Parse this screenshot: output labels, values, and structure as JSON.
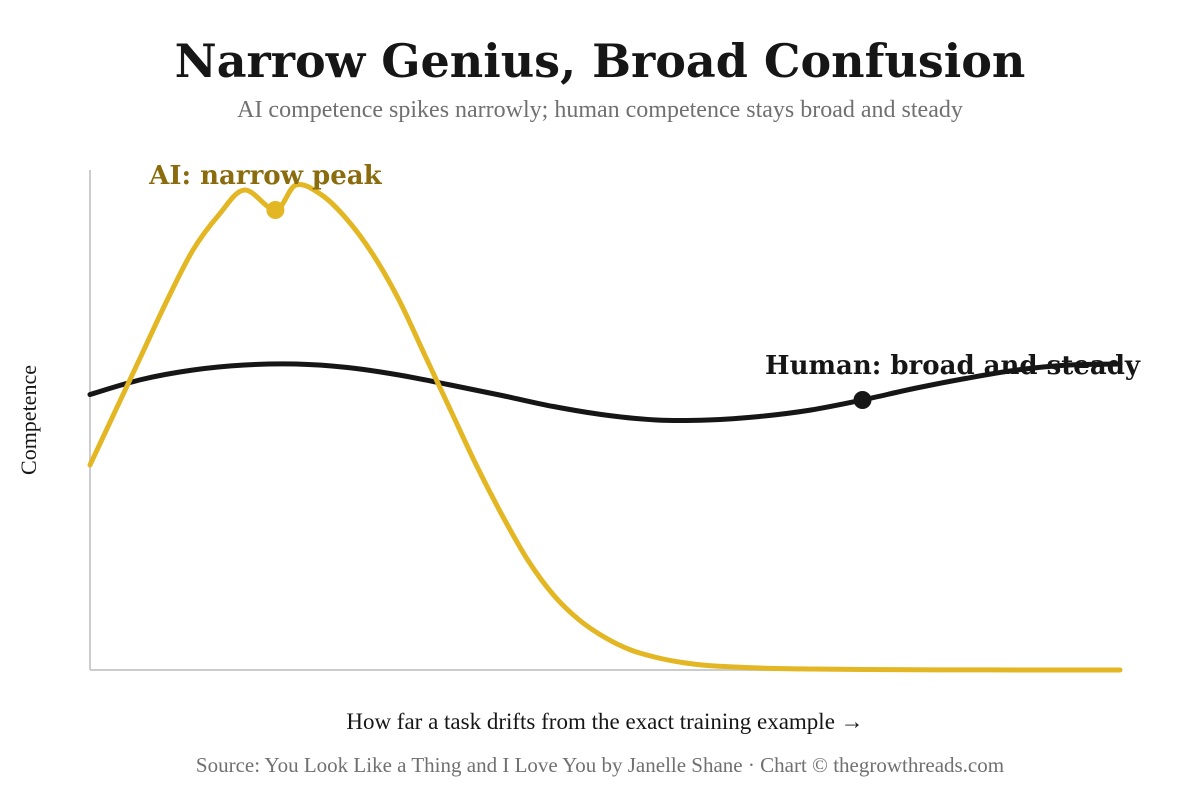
{
  "chart_data": {
    "type": "line",
    "title": "Narrow Genius, Broad Confusion",
    "subtitle": "AI competence spikes narrowly; human competence stays broad and steady",
    "xlabel": "How far a task drifts from the exact training example →",
    "ylabel": "Competence",
    "source": "Source: You Look Like a Thing and I Love You by Janelle Shane · Chart © thegrowthreads.com",
    "xlim": [
      0,
      10
    ],
    "ylim": [
      0,
      1
    ],
    "x_ticks": [],
    "y_ticks": [],
    "grid": false,
    "colors": {
      "ai": "#e3b723",
      "ai_label": "#8a6c0e",
      "human": "#161616",
      "axis": "#cccccc"
    },
    "series": [
      {
        "key": "ai",
        "x": [
          0,
          0.25,
          0.5,
          0.75,
          1.0,
          1.25,
          1.5,
          1.8,
          2.0,
          2.25,
          2.5,
          2.75,
          3.0,
          3.25,
          3.5,
          3.75,
          4.0,
          4.25,
          4.5,
          4.75,
          5.0,
          5.25,
          5.5,
          5.75,
          6.0,
          6.5,
          7.0,
          7.5,
          8.0,
          8.5,
          9.0,
          9.5,
          10.0
        ],
        "values": [
          0.41,
          0.52,
          0.63,
          0.74,
          0.84,
          0.91,
          0.96,
          0.92,
          0.97,
          0.95,
          0.9,
          0.83,
          0.74,
          0.63,
          0.52,
          0.41,
          0.31,
          0.22,
          0.15,
          0.1,
          0.065,
          0.04,
          0.025,
          0.015,
          0.009,
          0.004,
          0.002,
          0.001,
          0.0005,
          0.0002,
          0.0001,
          0.0,
          0.0
        ]
      },
      {
        "key": "human",
        "x": [
          0,
          0.5,
          1.0,
          1.5,
          2.0,
          2.5,
          3.0,
          3.5,
          4.0,
          4.5,
          5.0,
          5.5,
          6.0,
          6.5,
          7.0,
          7.5,
          8.0,
          8.5,
          9.0,
          9.5,
          10.0
        ],
        "values": [
          0.551,
          0.581,
          0.6,
          0.61,
          0.612,
          0.605,
          0.59,
          0.57,
          0.549,
          0.527,
          0.51,
          0.5,
          0.5,
          0.507,
          0.52,
          0.54,
          0.563,
          0.583,
          0.6,
          0.61,
          0.612
        ]
      }
    ],
    "annotations": [
      {
        "series": "ai",
        "text": "AI: narrow peak",
        "x": 1.8,
        "y": 0.92
      },
      {
        "series": "human",
        "text": "Human: broad and steady",
        "x": 7.5,
        "y": 0.54
      }
    ]
  }
}
